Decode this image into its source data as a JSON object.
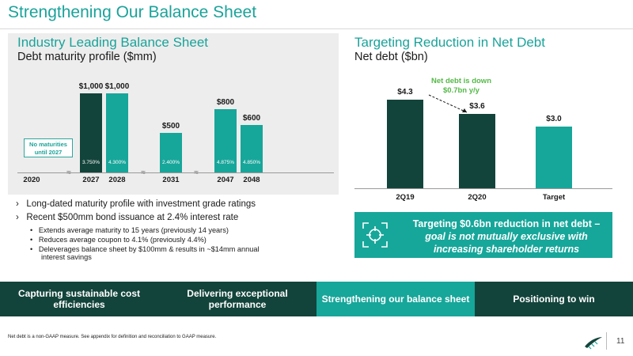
{
  "page": {
    "title": "Strengthening Our Balance Sheet",
    "page_number": "11",
    "footnote": "Net debt is a non-GAAP measure. See appendix for definition and reconciliation to GAAP measure."
  },
  "left": {
    "heading": "Industry Leading Balance Sheet",
    "subheading": "Debt maturity profile ($mm)",
    "no_maturities": "No maturities until 2027",
    "chart_data": {
      "type": "bar",
      "title": "Debt maturity profile ($mm)",
      "categories": [
        "2020",
        "2027",
        "2028",
        "2031",
        "2047",
        "2048"
      ],
      "values": [
        0,
        1000,
        1000,
        500,
        800,
        600
      ],
      "value_labels": [
        "",
        "$1,000",
        "$1,000",
        "$500",
        "$800",
        "$600"
      ],
      "rates": [
        "",
        "3.750%",
        "4.300%",
        "2.400%",
        "4.875%",
        "4.850%"
      ],
      "colors": [
        "",
        "dark",
        "teal",
        "teal",
        "teal",
        "teal"
      ],
      "ylim": [
        0,
        1000
      ]
    },
    "bullets": [
      "Long-dated maturity profile with investment grade ratings",
      "Recent $500mm bond issuance at 2.4% interest rate"
    ],
    "sub_bullets": [
      "Extends average maturity to 15 years (previously 14 years)",
      "Reduces average coupon to 4.1% (previously 4.4%)",
      "Deleverages balance sheet by $100mm & results in ~$14mm annual",
      "interest savings"
    ]
  },
  "right": {
    "heading": "Targeting Reduction in Net Debt",
    "subheading": "Net debt ($bn)",
    "callout_line1": "Net debt is down",
    "callout_line2": "$0.7bn y/y",
    "chart_data": {
      "type": "bar",
      "title": "Net debt ($bn)",
      "categories": [
        "2Q19",
        "2Q20",
        "Target"
      ],
      "values": [
        4.3,
        3.6,
        3.0
      ],
      "value_labels": [
        "$4.3",
        "$3.6",
        "$3.0"
      ],
      "colors": [
        "#13443b",
        "#13443b",
        "#17a69a"
      ],
      "ylim": [
        0,
        4.3
      ]
    },
    "target_line1": "Targeting $0.6bn reduction in net debt –",
    "target_line2": "goal is not mutually exclusive with",
    "target_line3": "increasing shareholder returns"
  },
  "nav": {
    "items": [
      "Capturing sustainable cost efficiencies",
      "Delivering exceptional performance",
      "Strengthening our balance sheet",
      "Positioning to win"
    ],
    "active_index": 2
  }
}
